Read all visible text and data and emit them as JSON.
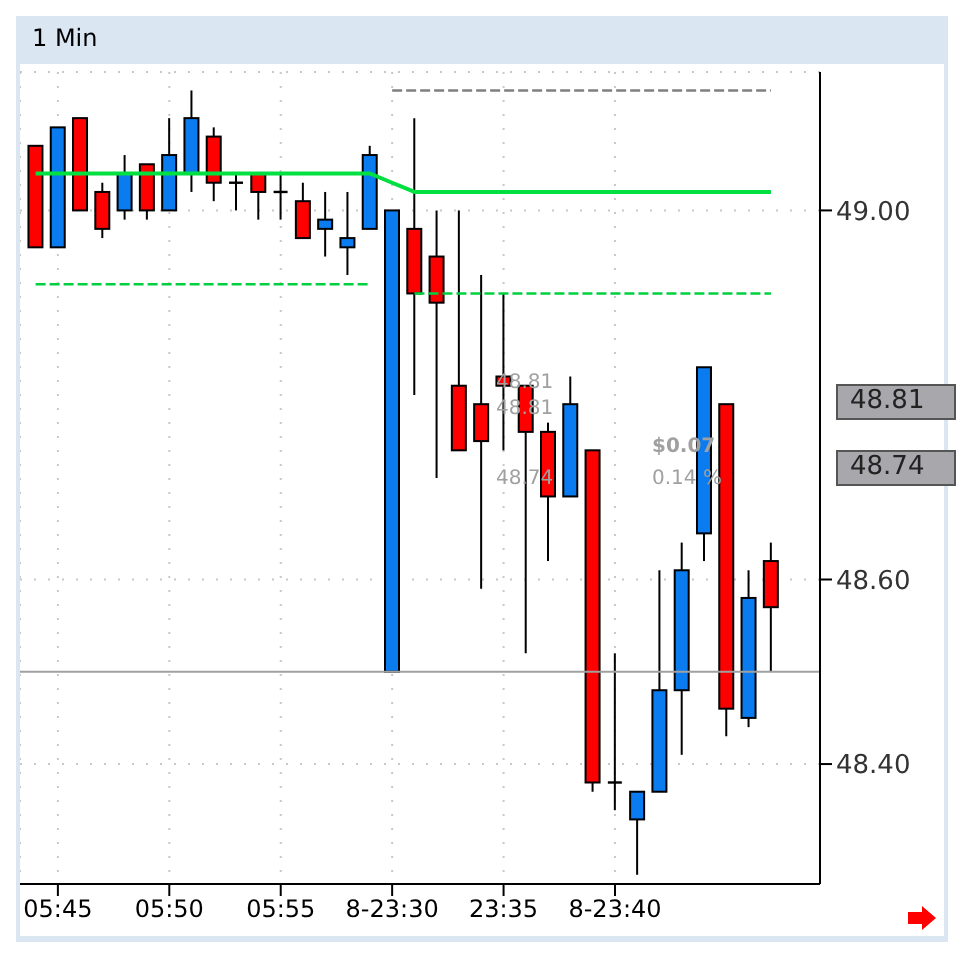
{
  "chart_data": {
    "type": "candlestick",
    "title": "1 Min",
    "categories": [
      null,
      "05:45",
      null,
      null,
      null,
      null,
      "05:50",
      null,
      null,
      null,
      null,
      "05:55",
      null,
      null,
      null,
      null,
      "8-23:30",
      null,
      null,
      null,
      null,
      "23:35",
      null,
      null,
      null,
      null,
      "8-23:40",
      null,
      null,
      null,
      null,
      null,
      null,
      null
    ],
    "ohlc": [
      [
        49.07,
        49.07,
        48.96,
        48.96
      ],
      [
        48.96,
        49.09,
        48.96,
        49.09
      ],
      [
        49.1,
        49.1,
        49.0,
        49.0
      ],
      [
        49.02,
        49.03,
        48.97,
        48.98
      ],
      [
        49.0,
        49.06,
        48.99,
        49.04
      ],
      [
        49.05,
        49.05,
        48.99,
        49.0
      ],
      [
        49.0,
        49.1,
        49.0,
        49.06
      ],
      [
        49.04,
        49.13,
        49.02,
        49.1
      ],
      [
        49.08,
        49.09,
        49.01,
        49.03
      ],
      [
        49.03,
        49.04,
        49.0,
        49.03
      ],
      [
        49.04,
        49.04,
        48.99,
        49.02
      ],
      [
        49.02,
        49.04,
        48.99,
        49.02
      ],
      [
        49.01,
        49.03,
        48.97,
        48.97
      ],
      [
        48.98,
        49.02,
        48.95,
        48.99
      ],
      [
        48.96,
        49.02,
        48.93,
        48.97
      ],
      [
        48.98,
        49.07,
        48.98,
        49.06
      ],
      [
        48.5,
        49.0,
        48.5,
        49.0
      ],
      [
        48.98,
        49.1,
        48.8,
        48.91
      ],
      [
        48.95,
        49.0,
        48.71,
        48.9
      ],
      [
        48.81,
        49.0,
        48.74,
        48.74
      ],
      [
        48.79,
        48.93,
        48.59,
        48.75
      ],
      [
        48.82,
        48.91,
        48.74,
        48.81
      ],
      [
        48.81,
        48.81,
        48.52,
        48.76
      ],
      [
        48.76,
        48.77,
        48.62,
        48.69
      ],
      [
        48.69,
        48.82,
        48.69,
        48.79
      ],
      [
        48.74,
        48.74,
        48.37,
        48.38
      ],
      [
        48.38,
        48.52,
        48.35,
        48.38
      ],
      [
        48.34,
        48.37,
        48.28,
        48.37
      ],
      [
        48.37,
        48.61,
        48.37,
        48.48
      ],
      [
        48.48,
        48.64,
        48.41,
        48.61
      ],
      [
        48.65,
        48.83,
        48.62,
        48.83
      ],
      [
        48.79,
        48.79,
        48.43,
        48.46
      ],
      [
        48.45,
        48.61,
        48.44,
        48.58
      ],
      [
        48.62,
        48.64,
        48.5,
        48.57
      ]
    ],
    "colors": [
      "#ff0000",
      "#0a7cf0",
      "#ff0000",
      "#ff0000",
      "#0a7cf0",
      "#ff0000",
      "#0a7cf0",
      "#0a7cf0",
      "#ff0000",
      "#000000",
      "#ff0000",
      "#000000",
      "#ff0000",
      "#0a7cf0",
      "#0a7cf0",
      "#0a7cf0",
      "#0a7cf0",
      "#ff0000",
      "#ff0000",
      "#ff0000",
      "#ff0000",
      "#ff0000",
      "#ff0000",
      "#ff0000",
      "#0a7cf0",
      "#ff0000",
      "#000000",
      "#0a7cf0",
      "#0a7cf0",
      "#0a7cf0",
      "#0a7cf0",
      "#ff0000",
      "#0a7cf0",
      "#ff0000"
    ],
    "series": [
      {
        "type": "line",
        "color": "#00e040",
        "line_style": "solid",
        "values": [
          49.04,
          49.04,
          49.04,
          49.04,
          49.04,
          49.04,
          49.04,
          49.04,
          49.04,
          49.04,
          49.04,
          49.04,
          49.04,
          49.04,
          49.04,
          49.04,
          49.03,
          49.02,
          49.02,
          49.02,
          49.02,
          49.02,
          49.02,
          49.02,
          49.02,
          49.02,
          49.02,
          49.02,
          49.02,
          49.02,
          49.02,
          49.02,
          49.02,
          49.02
        ]
      },
      {
        "type": "line",
        "color": "#00d040",
        "line_style": "dashed",
        "values": [
          48.92,
          48.92,
          48.92,
          48.92,
          48.92,
          48.92,
          48.92,
          48.92,
          48.92,
          48.92,
          48.92,
          48.92,
          48.92,
          48.92,
          48.92,
          48.92,
          null,
          48.91,
          48.91,
          48.91,
          48.91,
          48.91,
          48.91,
          48.91,
          48.91,
          48.91,
          48.91,
          48.91,
          48.91,
          48.91,
          48.91,
          48.91,
          48.91,
          48.91
        ]
      },
      {
        "type": "line",
        "color": "#808080",
        "line_style": "dashed",
        "values": [
          null,
          null,
          null,
          null,
          null,
          null,
          null,
          null,
          null,
          null,
          null,
          null,
          null,
          null,
          null,
          null,
          49.13,
          49.13,
          49.13,
          49.13,
          49.13,
          49.13,
          49.13,
          49.13,
          49.13,
          49.13,
          49.13,
          49.13,
          49.13,
          49.13,
          49.13,
          49.13,
          49.13,
          49.13
        ]
      }
    ],
    "ylim": [
      48.27,
      49.15
    ],
    "yticks": [
      {
        "value": 48.4,
        "label": "48.40"
      },
      {
        "value": 48.6,
        "label": "48.60"
      },
      {
        "value": 49.0,
        "label": "49.00"
      }
    ],
    "grid": true,
    "ref_lines": [
      {
        "axis": "y",
        "value": 48.5,
        "color": "#a0a0a0"
      }
    ],
    "annotations": [
      "48.81",
      "48.74",
      "48.81",
      "48.81",
      "48.74",
      "$0.07",
      "0.14 %"
    ]
  }
}
